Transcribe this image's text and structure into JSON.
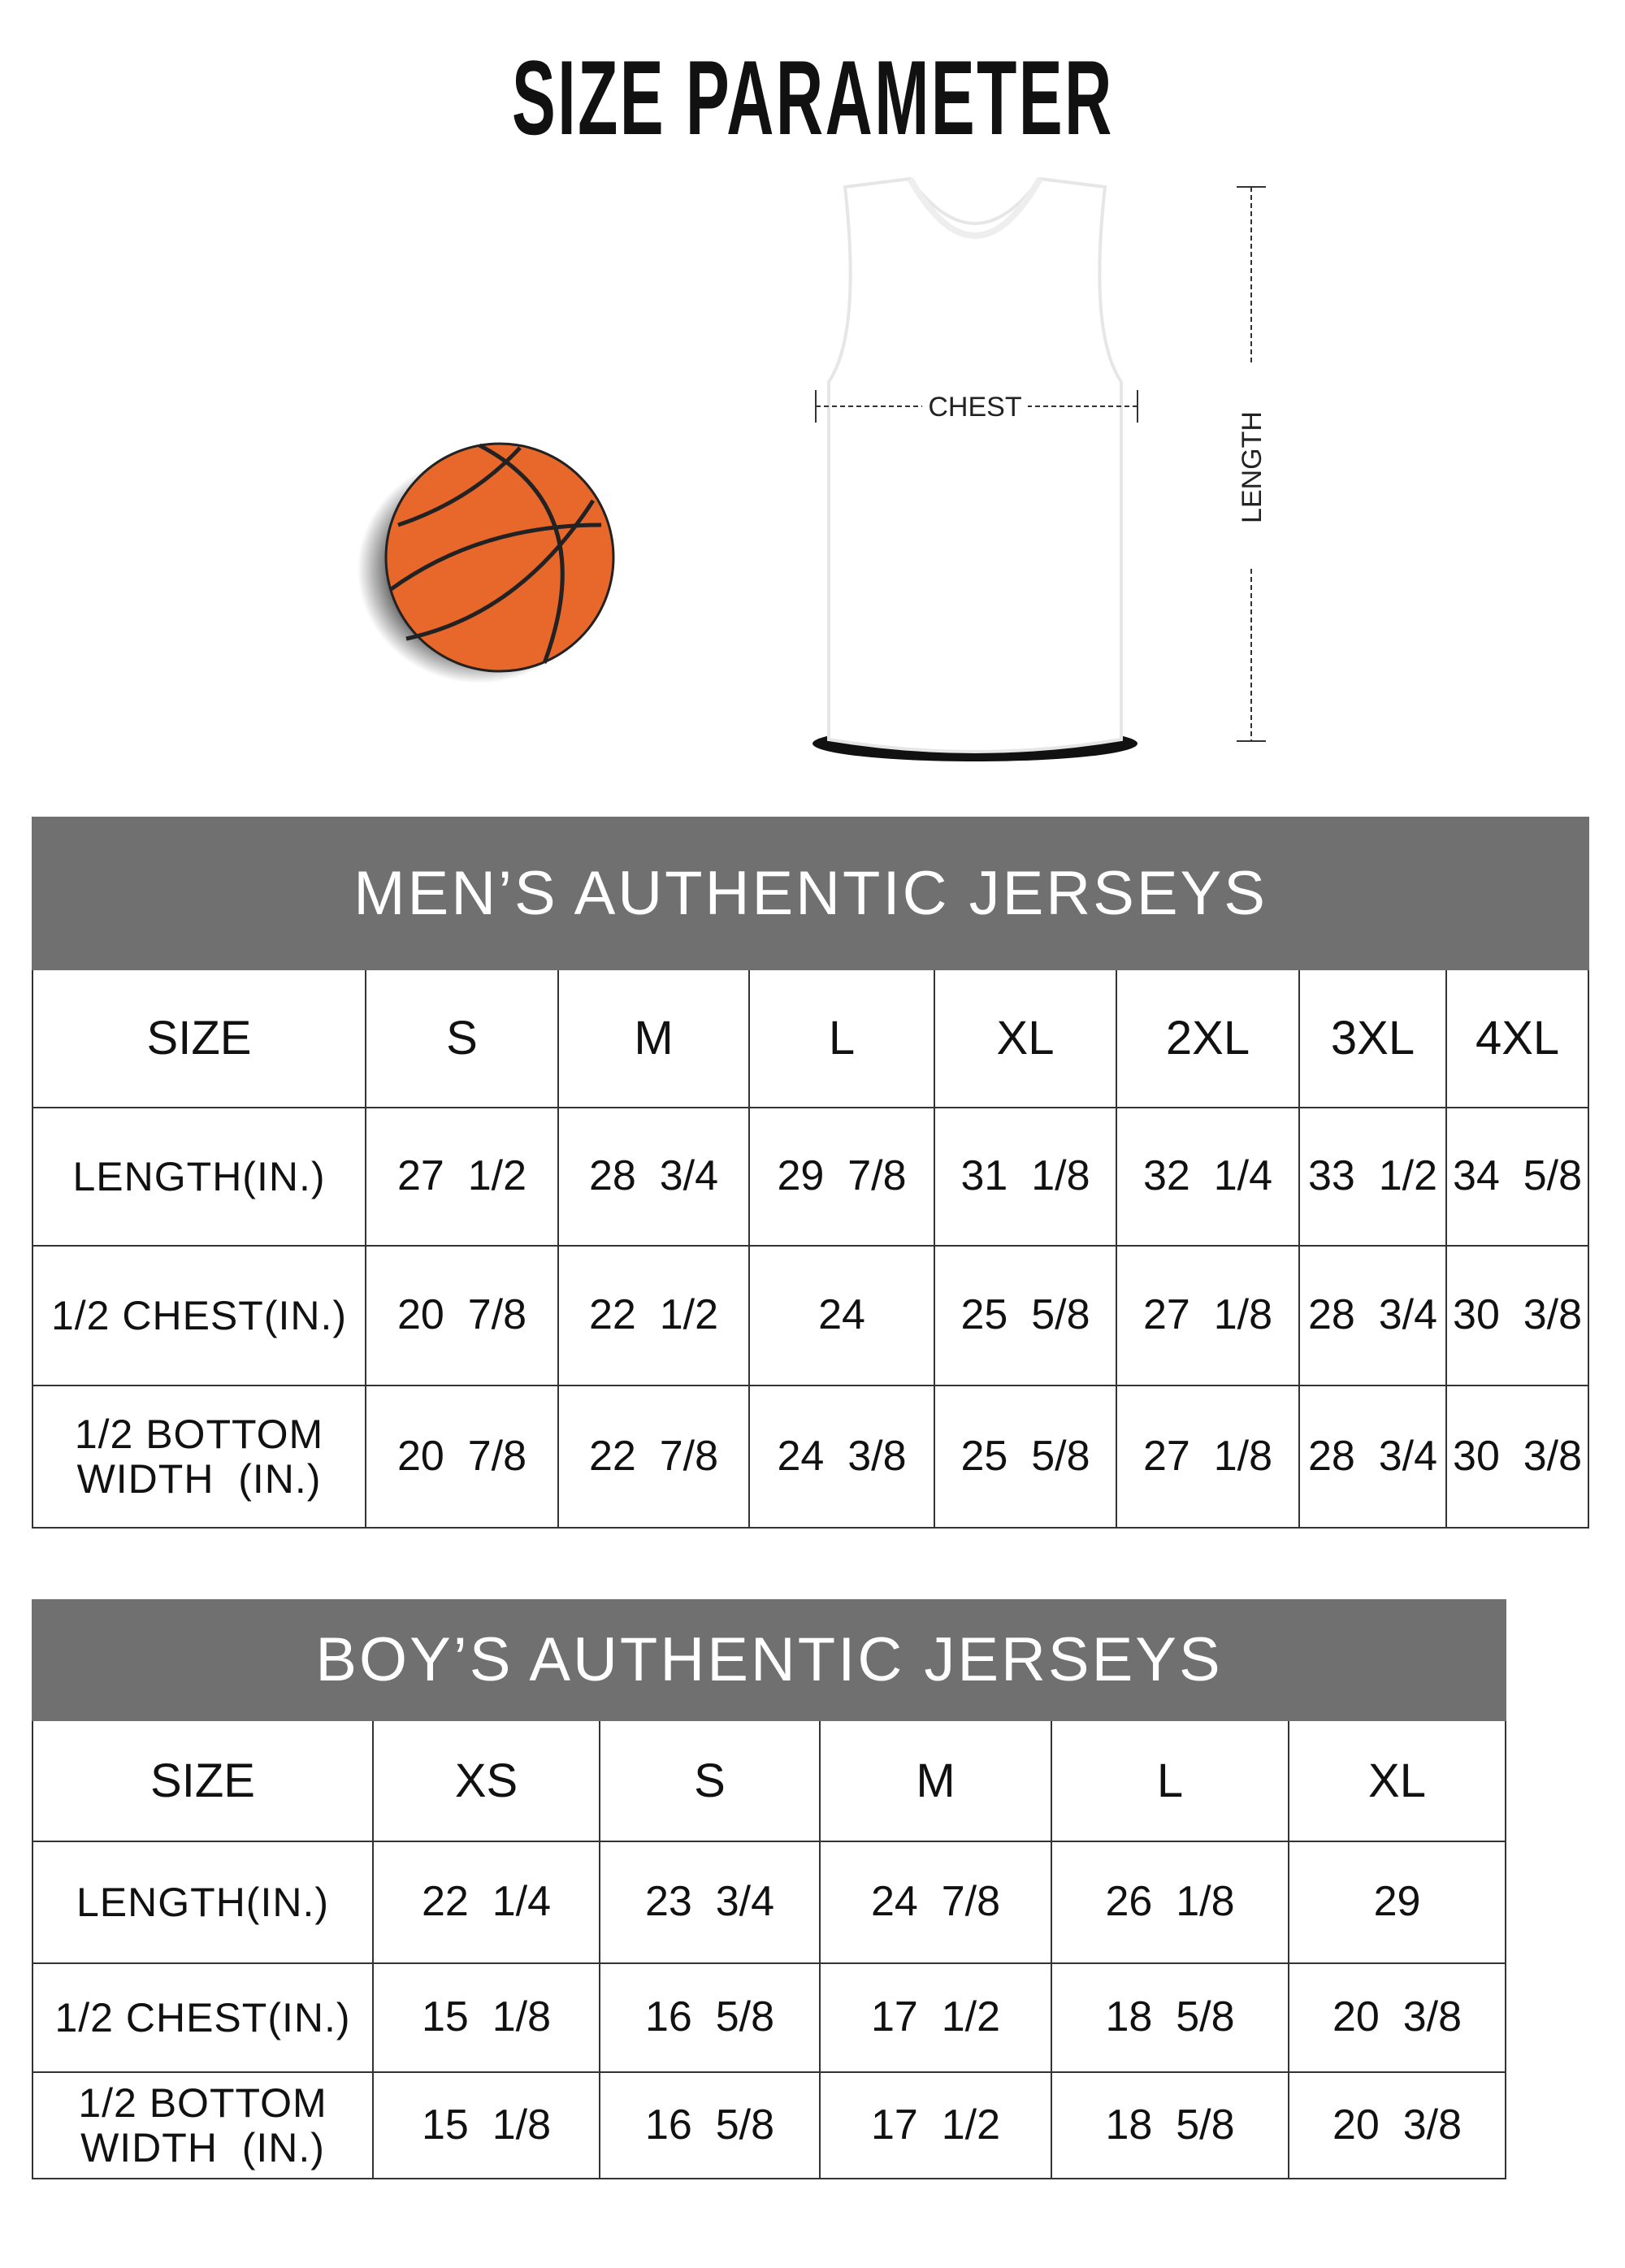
{
  "title": "SIZE PARAMETER",
  "diagram": {
    "chest_label": "CHEST",
    "length_label": "LENGTH",
    "ball_color": "#e8672a"
  },
  "header_color": "#707070",
  "men": {
    "title": "MEN’S AUTHENTIC JERSEYS",
    "size_label": "SIZE",
    "sizes": [
      "S",
      "M",
      "L",
      "XL",
      "2XL",
      "3XL",
      "4XL"
    ],
    "rows": [
      {
        "label": "LENGTH(IN.)",
        "values": [
          "27  1/2",
          "28  3/4",
          "29  7/8",
          "31  1/8",
          "32  1/4",
          "33  1/2",
          "34  5/8"
        ]
      },
      {
        "label": "1/2 CHEST(IN.)",
        "values": [
          "20  7/8",
          "22  1/2",
          "24",
          "25  5/8",
          "27  1/8",
          "28  3/4",
          "30  3/8"
        ]
      },
      {
        "label": "1/2 BOTTOM WIDTH  (IN.)",
        "values": [
          "20  7/8",
          "22  7/8",
          "24  3/8",
          "25  5/8",
          "27  1/8",
          "28  3/4",
          "30  3/8"
        ]
      }
    ]
  },
  "boys": {
    "title": "BOY’S AUTHENTIC JERSEYS",
    "size_label": "SIZE",
    "sizes": [
      "XS",
      "S",
      "M",
      "L",
      "XL"
    ],
    "rows": [
      {
        "label": "LENGTH(IN.)",
        "values": [
          "22  1/4",
          "23  3/4",
          "24  7/8",
          "26  1/8",
          "29"
        ]
      },
      {
        "label": "1/2 CHEST(IN.)",
        "values": [
          "15  1/8",
          "16  5/8",
          "17  1/2",
          "18  5/8",
          "20  3/8"
        ]
      },
      {
        "label": "1/2 BOTTOM WIDTH  (IN.)",
        "values": [
          "15  1/8",
          "16  5/8",
          "17  1/2",
          "18  5/8",
          "20  3/8"
        ]
      }
    ]
  }
}
